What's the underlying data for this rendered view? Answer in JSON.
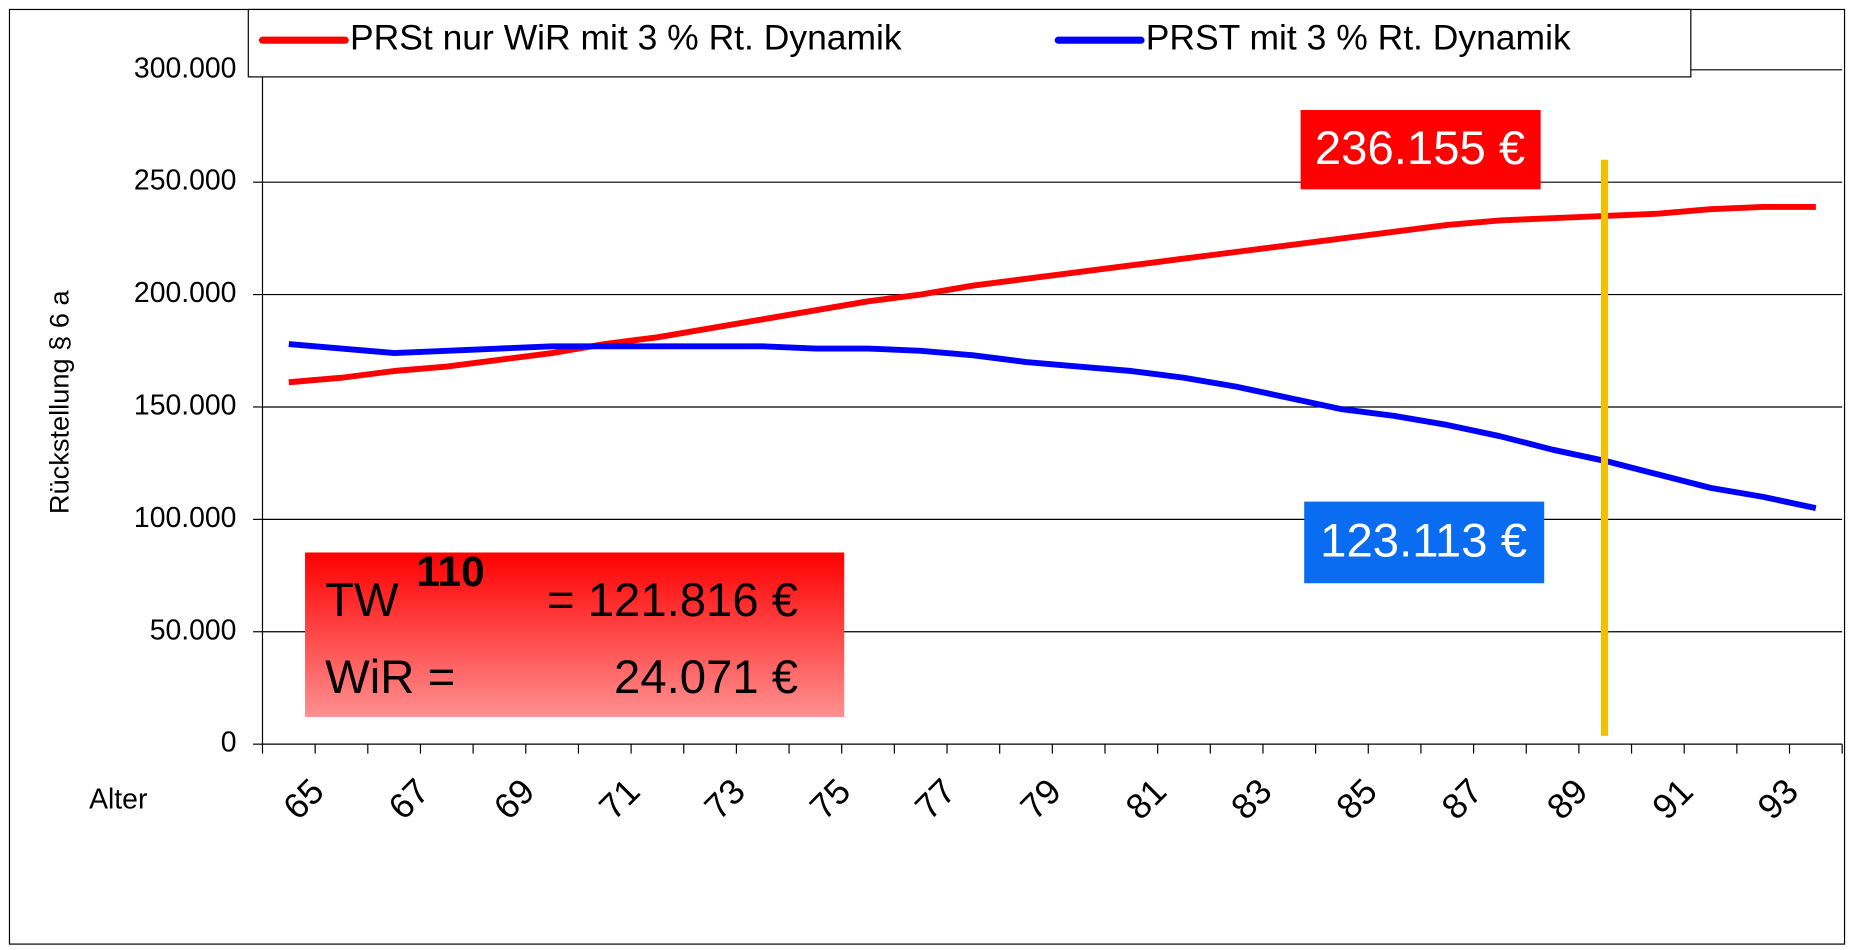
{
  "chart_data": {
    "type": "line",
    "ylabel": "Rückstellung § 6 a",
    "xlabel": "Alter",
    "categories": [
      "65",
      null,
      "67",
      null,
      "69",
      null,
      "71",
      null,
      "73",
      null,
      "75",
      null,
      "77",
      null,
      "79",
      null,
      "81",
      null,
      "83",
      null,
      "85",
      null,
      "87",
      null,
      "89",
      null,
      "91",
      null,
      "93",
      null
    ],
    "series": [
      {
        "name": "PRSt nur WiR mit 3 % Rt. Dynamik",
        "color": "#ff0000",
        "values": [
          161000,
          163000,
          166000,
          168000,
          171000,
          174000,
          178000,
          181000,
          185000,
          189000,
          193000,
          197000,
          200000,
          204000,
          207000,
          210000,
          213000,
          216000,
          219000,
          222000,
          225000,
          228000,
          231000,
          233000,
          234000,
          235000,
          236000,
          238000,
          239000,
          239000
        ]
      },
      {
        "name": "PRST mit 3 % Rt. Dynamik",
        "color": "#0000ff",
        "values": [
          178000,
          176000,
          174000,
          175000,
          176000,
          177000,
          177000,
          177000,
          177000,
          177000,
          176000,
          176000,
          175000,
          173000,
          170000,
          168000,
          166000,
          163000,
          159000,
          154000,
          149000,
          146000,
          142000,
          137000,
          131000,
          126000,
          120000,
          114000,
          110000,
          105000
        ]
      }
    ],
    "ylim": [
      0,
      300000
    ],
    "yticks": [
      0,
      {
        "value": 50000,
        "label": "50.000"
      },
      {
        "value": 100000,
        "label": "100.000"
      },
      {
        "value": 150000,
        "label": "150.000"
      },
      {
        "value": 200000,
        "label": "200.000"
      },
      {
        "value": 250000,
        "label": "250.000"
      },
      {
        "value": 300000,
        "label": "300.000"
      }
    ],
    "grid": true,
    "legend": "top",
    "annotations": {
      "red_value": "236.155 €",
      "blue_value": "123.113 €",
      "tw": "TW",
      "tw_sup": "110",
      "tw_value": "= 121.816 €",
      "wir": "WiR =",
      "wir_value": "24.071 €"
    }
  }
}
